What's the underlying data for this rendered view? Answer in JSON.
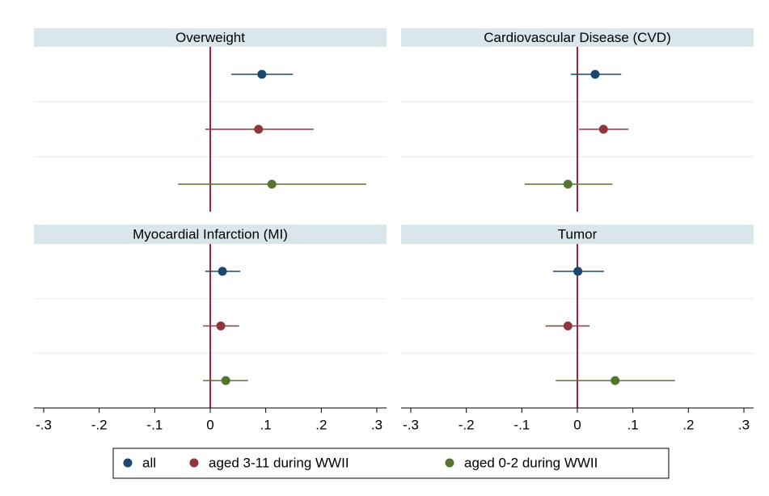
{
  "chart_data": [
    {
      "type": "coefplot",
      "title": "Overweight",
      "xlim": [
        -0.3175,
        0.3175
      ],
      "xline": 0,
      "grid": true,
      "series": [
        {
          "name": "all",
          "color": "#1a476f",
          "values": [
            0.093
          ],
          "lower": [
            0.038
          ],
          "upper": [
            0.149
          ]
        },
        {
          "name": "aged 3-11 during WWII",
          "color": "#90353b",
          "values": [
            0.087
          ],
          "lower": [
            -0.009
          ],
          "upper": [
            0.186
          ]
        },
        {
          "name": "aged 0-2 during WWII",
          "color": "#55752f",
          "values": [
            0.111
          ],
          "lower": [
            -0.058
          ],
          "upper": [
            0.281
          ]
        }
      ]
    },
    {
      "type": "coefplot",
      "title": "Cardiovascular Disease (CVD)",
      "xlim": [
        -0.3175,
        0.3175
      ],
      "xline": 0,
      "grid": true,
      "series": [
        {
          "name": "all",
          "color": "#1a476f",
          "values": [
            0.032
          ],
          "lower": [
            -0.012
          ],
          "upper": [
            0.079
          ]
        },
        {
          "name": "aged 3-11 during WWII",
          "color": "#90353b",
          "values": [
            0.047
          ],
          "lower": [
            0.003
          ],
          "upper": [
            0.092
          ]
        },
        {
          "name": "aged 0-2 during WWII",
          "color": "#55752f",
          "values": [
            -0.017
          ],
          "lower": [
            -0.095
          ],
          "upper": [
            0.063
          ]
        }
      ]
    },
    {
      "type": "coefplot",
      "title": "Myocardial Infarction (MI)",
      "xlim": [
        -0.3175,
        0.3175
      ],
      "xline": 0,
      "grid": true,
      "xticks": [
        {
          "value": -0.3,
          "label": "-.3"
        },
        {
          "value": -0.2,
          "label": "-.2"
        },
        {
          "value": -0.1,
          "label": "-.1"
        },
        0,
        {
          "value": 0.1,
          "label": ".1"
        },
        {
          "value": 0.2,
          "label": ".2"
        },
        {
          "value": 0.3,
          "label": ".3"
        }
      ],
      "series": [
        {
          "name": "all",
          "color": "#1a476f",
          "values": [
            0.022
          ],
          "lower": [
            -0.009
          ],
          "upper": [
            0.054
          ]
        },
        {
          "name": "aged 3-11 during WWII",
          "color": "#90353b",
          "values": [
            0.019
          ],
          "lower": [
            -0.013
          ],
          "upper": [
            0.052
          ]
        },
        {
          "name": "aged 0-2 during WWII",
          "color": "#55752f",
          "values": [
            0.028
          ],
          "lower": [
            -0.013
          ],
          "upper": [
            0.068
          ]
        }
      ]
    },
    {
      "type": "coefplot",
      "title": "Tumor",
      "xlim": [
        -0.3175,
        0.3175
      ],
      "xline": 0,
      "grid": true,
      "xticks": [
        {
          "value": -0.3,
          "label": "-.3"
        },
        {
          "value": -0.2,
          "label": "-.2"
        },
        {
          "value": -0.1,
          "label": "-.1"
        },
        0,
        {
          "value": 0.1,
          "label": ".1"
        },
        {
          "value": 0.2,
          "label": ".2"
        },
        {
          "value": 0.3,
          "label": ".3"
        }
      ],
      "series": [
        {
          "name": "all",
          "color": "#1a476f",
          "values": [
            0.001
          ],
          "lower": [
            -0.044
          ],
          "upper": [
            0.048
          ]
        },
        {
          "name": "aged 3-11 during WWII",
          "color": "#90353b",
          "values": [
            -0.017
          ],
          "lower": [
            -0.057
          ],
          "upper": [
            0.022
          ]
        },
        {
          "name": "aged 0-2 during WWII",
          "color": "#55752f",
          "values": [
            0.068
          ],
          "lower": [
            -0.039
          ],
          "upper": [
            0.176
          ]
        }
      ]
    }
  ]
}
